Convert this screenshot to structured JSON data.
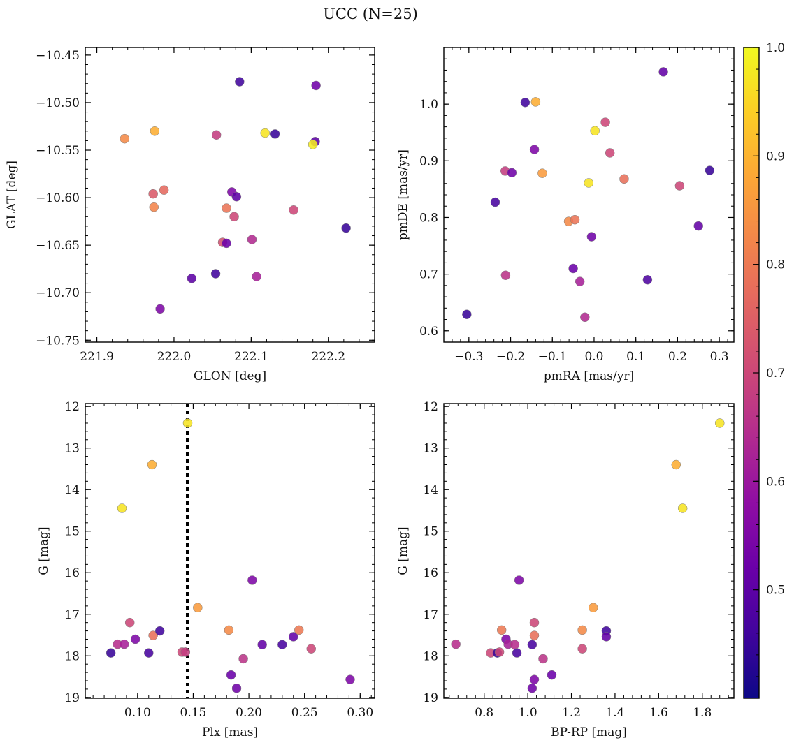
{
  "suptitle": "UCC (N=25)",
  "colorbar": {
    "min": 0.4,
    "max": 1.0,
    "ticks": [
      0.5,
      0.6,
      0.7,
      0.8,
      0.9,
      1.0
    ],
    "tick_labels": [
      "0.5",
      "0.6",
      "0.7",
      "0.8",
      "0.9",
      "1.0"
    ],
    "colormap": "plasma"
  },
  "chart_data": [
    {
      "type": "scatter",
      "xlabel": "GLON [deg]",
      "ylabel": "GLAT [deg]",
      "xlim": [
        221.885,
        222.26
      ],
      "ylim": [
        -10.752,
        -10.442
      ],
      "xticks": [
        221.9,
        222.0,
        222.1,
        222.2
      ],
      "xtick_labels": [
        "221.9",
        "222.0",
        "222.1",
        "222.2"
      ],
      "yticks": [
        -10.45,
        -10.5,
        -10.55,
        -10.6,
        -10.65,
        -10.7,
        -10.75
      ],
      "ytick_labels": [
        "−10.45",
        "−10.50",
        "−10.55",
        "−10.60",
        "−10.65",
        "−10.70",
        "−10.75"
      ],
      "points": [
        {
          "x": 221.936,
          "y": -10.538,
          "c": 0.83
        },
        {
          "x": 221.975,
          "y": -10.53,
          "c": 0.89
        },
        {
          "x": 221.973,
          "y": -10.596,
          "c": 0.74
        },
        {
          "x": 221.974,
          "y": -10.61,
          "c": 0.82
        },
        {
          "x": 221.987,
          "y": -10.592,
          "c": 0.77
        },
        {
          "x": 221.982,
          "y": -10.717,
          "c": 0.55
        },
        {
          "x": 222.023,
          "y": -10.685,
          "c": 0.5
        },
        {
          "x": 222.054,
          "y": -10.68,
          "c": 0.46
        },
        {
          "x": 222.055,
          "y": -10.534,
          "c": 0.68
        },
        {
          "x": 222.063,
          "y": -10.647,
          "c": 0.72
        },
        {
          "x": 222.068,
          "y": -10.648,
          "c": 0.52
        },
        {
          "x": 222.068,
          "y": -10.611,
          "c": 0.79
        },
        {
          "x": 222.075,
          "y": -10.594,
          "c": 0.55
        },
        {
          "x": 222.078,
          "y": -10.62,
          "c": 0.7
        },
        {
          "x": 222.081,
          "y": -10.599,
          "c": 0.5
        },
        {
          "x": 222.085,
          "y": -10.478,
          "c": 0.46
        },
        {
          "x": 222.101,
          "y": -10.644,
          "c": 0.64
        },
        {
          "x": 222.107,
          "y": -10.683,
          "c": 0.62
        },
        {
          "x": 222.118,
          "y": -10.532,
          "c": 0.97
        },
        {
          "x": 222.131,
          "y": -10.533,
          "c": 0.45
        },
        {
          "x": 222.155,
          "y": -10.613,
          "c": 0.7
        },
        {
          "x": 222.183,
          "y": -10.541,
          "c": 0.5
        },
        {
          "x": 222.184,
          "y": -10.482,
          "c": 0.53
        },
        {
          "x": 222.18,
          "y": -10.544,
          "c": 0.98
        },
        {
          "x": 222.223,
          "y": -10.632,
          "c": 0.45
        }
      ]
    },
    {
      "type": "scatter",
      "xlabel": "pmRA [mas/yr]",
      "ylabel": "pmDE [mas/yr]",
      "xlim": [
        -0.36,
        0.335
      ],
      "ylim": [
        0.58,
        1.1
      ],
      "xticks": [
        -0.3,
        -0.2,
        -0.1,
        0.0,
        0.1,
        0.2,
        0.3
      ],
      "xtick_labels": [
        "−0.3",
        "−0.2",
        "−0.1",
        "0.0",
        "0.1",
        "0.2",
        "0.3"
      ],
      "yticks": [
        0.6,
        0.7,
        0.8,
        0.9,
        1.0
      ],
      "ytick_labels": [
        "0.6",
        "0.7",
        "0.8",
        "0.9",
        "1.0"
      ],
      "points": [
        {
          "x": -0.305,
          "y": 0.629,
          "c": 0.45
        },
        {
          "x": -0.237,
          "y": 0.827,
          "c": 0.47
        },
        {
          "x": -0.213,
          "y": 0.882,
          "c": 0.68
        },
        {
          "x": -0.212,
          "y": 0.698,
          "c": 0.66
        },
        {
          "x": -0.197,
          "y": 0.879,
          "c": 0.53
        },
        {
          "x": -0.165,
          "y": 1.003,
          "c": 0.46
        },
        {
          "x": -0.14,
          "y": 1.004,
          "c": 0.89
        },
        {
          "x": -0.143,
          "y": 0.92,
          "c": 0.55
        },
        {
          "x": -0.124,
          "y": 0.878,
          "c": 0.86
        },
        {
          "x": -0.061,
          "y": 0.793,
          "c": 0.83
        },
        {
          "x": -0.046,
          "y": 0.796,
          "c": 0.79
        },
        {
          "x": -0.05,
          "y": 0.71,
          "c": 0.52
        },
        {
          "x": -0.034,
          "y": 0.687,
          "c": 0.62
        },
        {
          "x": -0.022,
          "y": 0.624,
          "c": 0.64
        },
        {
          "x": -0.013,
          "y": 0.861,
          "c": 0.97
        },
        {
          "x": -0.006,
          "y": 0.766,
          "c": 0.53
        },
        {
          "x": 0.002,
          "y": 0.953,
          "c": 0.97
        },
        {
          "x": 0.027,
          "y": 0.968,
          "c": 0.7
        },
        {
          "x": 0.038,
          "y": 0.914,
          "c": 0.7
        },
        {
          "x": 0.072,
          "y": 0.868,
          "c": 0.78
        },
        {
          "x": 0.128,
          "y": 0.69,
          "c": 0.48
        },
        {
          "x": 0.166,
          "y": 1.057,
          "c": 0.51
        },
        {
          "x": 0.205,
          "y": 0.856,
          "c": 0.7
        },
        {
          "x": 0.25,
          "y": 0.785,
          "c": 0.51
        },
        {
          "x": 0.277,
          "y": 0.883,
          "c": 0.45
        }
      ]
    },
    {
      "type": "scatter",
      "xlabel": "Plx [mas]",
      "ylabel": "G [mag]",
      "y_inverted": true,
      "xlim": [
        0.053,
        0.313
      ],
      "ylim": [
        19.02,
        11.93
      ],
      "xticks": [
        0.1,
        0.15,
        0.2,
        0.25,
        0.3
      ],
      "xtick_labels": [
        "0.10",
        "0.15",
        "0.20",
        "0.25",
        "0.30"
      ],
      "yticks": [
        12,
        13,
        14,
        15,
        16,
        17,
        18,
        19
      ],
      "ytick_labels": [
        "12",
        "13",
        "14",
        "15",
        "16",
        "17",
        "18",
        "19"
      ],
      "vline": {
        "x": 0.145,
        "style": "dotted"
      },
      "points": [
        {
          "x": 0.076,
          "y": 17.93,
          "c": 0.45
        },
        {
          "x": 0.082,
          "y": 17.72,
          "c": 0.65
        },
        {
          "x": 0.086,
          "y": 14.45,
          "c": 0.97
        },
        {
          "x": 0.088,
          "y": 17.72,
          "c": 0.62
        },
        {
          "x": 0.093,
          "y": 17.2,
          "c": 0.7
        },
        {
          "x": 0.098,
          "y": 17.6,
          "c": 0.55
        },
        {
          "x": 0.11,
          "y": 17.93,
          "c": 0.47
        },
        {
          "x": 0.113,
          "y": 13.4,
          "c": 0.89
        },
        {
          "x": 0.114,
          "y": 17.51,
          "c": 0.78
        },
        {
          "x": 0.12,
          "y": 17.4,
          "c": 0.46
        },
        {
          "x": 0.14,
          "y": 17.91,
          "c": 0.7
        },
        {
          "x": 0.143,
          "y": 17.91,
          "c": 0.68
        },
        {
          "x": 0.145,
          "y": 12.4,
          "c": 0.97
        },
        {
          "x": 0.154,
          "y": 16.84,
          "c": 0.86
        },
        {
          "x": 0.182,
          "y": 17.38,
          "c": 0.83
        },
        {
          "x": 0.184,
          "y": 18.46,
          "c": 0.52
        },
        {
          "x": 0.189,
          "y": 18.78,
          "c": 0.53
        },
        {
          "x": 0.195,
          "y": 18.07,
          "c": 0.66
        },
        {
          "x": 0.203,
          "y": 16.18,
          "c": 0.55
        },
        {
          "x": 0.212,
          "y": 17.73,
          "c": 0.51
        },
        {
          "x": 0.23,
          "y": 17.73,
          "c": 0.47
        },
        {
          "x": 0.24,
          "y": 17.54,
          "c": 0.51
        },
        {
          "x": 0.245,
          "y": 17.38,
          "c": 0.8
        },
        {
          "x": 0.256,
          "y": 17.83,
          "c": 0.7
        },
        {
          "x": 0.291,
          "y": 18.57,
          "c": 0.55
        }
      ]
    },
    {
      "type": "scatter",
      "xlabel": "BP-RP [mag]",
      "ylabel": "G [mag]",
      "y_inverted": true,
      "xlim": [
        0.615,
        1.945
      ],
      "ylim": [
        19.02,
        11.93
      ],
      "xticks": [
        0.8,
        1.0,
        1.2,
        1.4,
        1.6,
        1.8
      ],
      "xtick_labels": [
        "0.8",
        "1.0",
        "1.2",
        "1.4",
        "1.6",
        "1.8"
      ],
      "yticks": [
        12,
        13,
        14,
        15,
        16,
        17,
        18,
        19
      ],
      "ytick_labels": [
        "12",
        "13",
        "14",
        "15",
        "16",
        "17",
        "18",
        "19"
      ],
      "points": [
        {
          "x": 0.67,
          "y": 17.72,
          "c": 0.65
        },
        {
          "x": 0.83,
          "y": 17.93,
          "c": 0.7
        },
        {
          "x": 0.86,
          "y": 17.93,
          "c": 0.45
        },
        {
          "x": 0.87,
          "y": 17.91,
          "c": 0.7
        },
        {
          "x": 0.88,
          "y": 17.38,
          "c": 0.8
        },
        {
          "x": 0.9,
          "y": 17.6,
          "c": 0.55
        },
        {
          "x": 0.91,
          "y": 17.72,
          "c": 0.62
        },
        {
          "x": 0.94,
          "y": 17.73,
          "c": 0.65
        },
        {
          "x": 0.95,
          "y": 17.93,
          "c": 0.47
        },
        {
          "x": 0.96,
          "y": 16.18,
          "c": 0.55
        },
        {
          "x": 1.02,
          "y": 17.73,
          "c": 0.47
        },
        {
          "x": 1.02,
          "y": 18.78,
          "c": 0.53
        },
        {
          "x": 1.03,
          "y": 17.2,
          "c": 0.7
        },
        {
          "x": 1.03,
          "y": 17.51,
          "c": 0.78
        },
        {
          "x": 1.03,
          "y": 18.57,
          "c": 0.55
        },
        {
          "x": 1.07,
          "y": 18.07,
          "c": 0.66
        },
        {
          "x": 1.11,
          "y": 18.46,
          "c": 0.52
        },
        {
          "x": 1.25,
          "y": 17.38,
          "c": 0.83
        },
        {
          "x": 1.25,
          "y": 17.83,
          "c": 0.7
        },
        {
          "x": 1.3,
          "y": 16.84,
          "c": 0.86
        },
        {
          "x": 1.36,
          "y": 17.4,
          "c": 0.46
        },
        {
          "x": 1.36,
          "y": 17.54,
          "c": 0.51
        },
        {
          "x": 1.68,
          "y": 13.4,
          "c": 0.89
        },
        {
          "x": 1.71,
          "y": 14.45,
          "c": 0.97
        },
        {
          "x": 1.88,
          "y": 12.4,
          "c": 0.97
        }
      ]
    }
  ]
}
